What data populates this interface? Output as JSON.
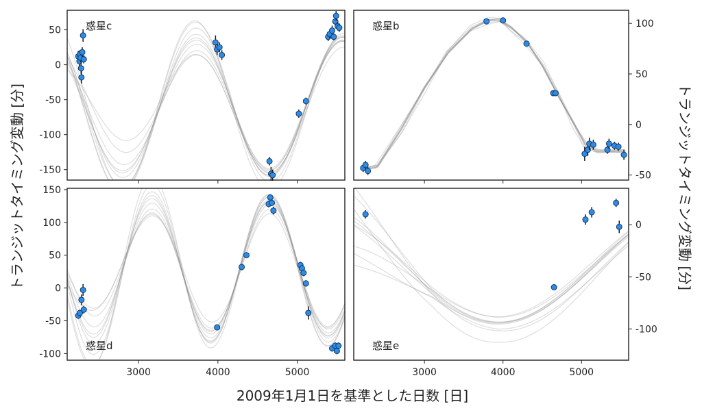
{
  "figure": {
    "xlabel": "2009年1月1日を基準とした日数 [日]",
    "ylabel_left": "トランジットタイミング変動 [分]",
    "ylabel_right": "トランジットタイミング変動 [分]"
  },
  "chart_data": [
    {
      "type": "scatter",
      "panel": "top-left",
      "label": "惑星c",
      "y_axis_side": "left",
      "xlim": [
        2100,
        5600
      ],
      "ylim": [
        -165,
        78
      ],
      "x_ticks": [
        3000,
        4000,
        5000
      ],
      "y_ticks": [
        -150,
        -100,
        -50,
        0,
        50
      ],
      "model": {
        "amplitude": 97,
        "offset": -60,
        "period": 1850,
        "phase_x": 4650,
        "phase_type": "min",
        "spread": 22,
        "extend_min": 2300,
        "n_lines": 10
      },
      "series": [
        {
          "points": [
            [
              2240,
              12,
              8
            ],
            [
              2255,
              5,
              7
            ],
            [
              2260,
              15,
              6
            ],
            [
              2270,
              10,
              6
            ],
            [
              2275,
              -5,
              8
            ],
            [
              2280,
              -18,
              9
            ],
            [
              2290,
              18,
              7
            ],
            [
              2300,
              42,
              9
            ],
            [
              2310,
              8,
              6
            ],
            [
              3970,
              32,
              10
            ],
            [
              3990,
              22,
              8
            ],
            [
              4020,
              25,
              7
            ],
            [
              4050,
              14,
              7
            ],
            [
              4650,
              -138,
              6
            ],
            [
              4670,
              -156,
              10
            ],
            [
              4690,
              -158,
              8
            ],
            [
              5020,
              -70,
              6
            ],
            [
              5110,
              -52,
              5
            ],
            [
              5390,
              40,
              6
            ],
            [
              5410,
              44,
              6
            ],
            [
              5440,
              49,
              7
            ],
            [
              5460,
              40,
              5
            ],
            [
              5480,
              62,
              8
            ],
            [
              5490,
              70,
              7
            ],
            [
              5510,
              55,
              6
            ],
            [
              5530,
              53,
              6
            ]
          ]
        }
      ]
    },
    {
      "type": "scatter",
      "panel": "top-right",
      "label": "惑星b",
      "y_axis_side": "right",
      "xlim": [
        2100,
        5600
      ],
      "ylim": [
        -55,
        113
      ],
      "x_ticks": [
        3000,
        4000,
        5000
      ],
      "y_ticks": [
        -50,
        0,
        50,
        100
      ],
      "model": {
        "type": "piecewise",
        "knots": [
          [
            2200,
            -43
          ],
          [
            2400,
            -40
          ],
          [
            2700,
            -5
          ],
          [
            3000,
            35
          ],
          [
            3300,
            70
          ],
          [
            3600,
            94
          ],
          [
            3800,
            103
          ],
          [
            3950,
            105
          ],
          [
            4100,
            97
          ],
          [
            4300,
            82
          ],
          [
            4500,
            58
          ],
          [
            4700,
            28
          ],
          [
            4900,
            0
          ],
          [
            5050,
            -20
          ],
          [
            5200,
            -25
          ],
          [
            5550,
            -25
          ]
        ],
        "spread": 4,
        "n_lines": 10
      },
      "series": [
        {
          "points": [
            [
              2220,
              -43,
              4
            ],
            [
              2250,
              -40,
              4
            ],
            [
              2280,
              -46,
              4
            ],
            [
              3790,
              102,
              2
            ],
            [
              4000,
              103,
              2
            ],
            [
              4300,
              80,
              2
            ],
            [
              4640,
              31,
              2
            ],
            [
              4670,
              31,
              2
            ],
            [
              5040,
              -29,
              7
            ],
            [
              5080,
              -25,
              6
            ],
            [
              5100,
              -19,
              6
            ],
            [
              5150,
              -20,
              5
            ],
            [
              5330,
              -25,
              4
            ],
            [
              5350,
              -19,
              5
            ],
            [
              5420,
              -21,
              4
            ],
            [
              5470,
              -22,
              4
            ],
            [
              5540,
              -30,
              5
            ]
          ]
        }
      ]
    },
    {
      "type": "scatter",
      "panel": "bottom-left",
      "label": "惑星d",
      "y_axis_side": "left",
      "xlim": [
        2100,
        5600
      ],
      "ylim": [
        -110,
        152
      ],
      "x_ticks": [
        3000,
        4000,
        5000
      ],
      "y_ticks": [
        -100,
        -50,
        0,
        50,
        100,
        150
      ],
      "model": {
        "amplitude": 103,
        "offset": 30,
        "period": 1480,
        "phase_x": 4650,
        "phase_type": "max",
        "spread": 18,
        "extend_min": 2200,
        "n_lines": 10
      },
      "series": [
        {
          "points": [
            [
              2240,
              -42,
              5
            ],
            [
              2260,
              -38,
              5
            ],
            [
              2280,
              -18,
              8
            ],
            [
              2300,
              -3,
              9
            ],
            [
              2310,
              -33,
              6
            ],
            [
              3990,
              -60,
              4
            ],
            [
              4300,
              32,
              5
            ],
            [
              4360,
              50,
              4
            ],
            [
              4640,
              128,
              5
            ],
            [
              4660,
              138,
              5
            ],
            [
              4680,
              130,
              5
            ],
            [
              4700,
              118,
              6
            ],
            [
              5040,
              35,
              5
            ],
            [
              5060,
              30,
              5
            ],
            [
              5080,
              23,
              5
            ],
            [
              5110,
              7,
              5
            ],
            [
              5140,
              -38,
              10
            ],
            [
              5440,
              -92,
              5
            ],
            [
              5480,
              -88,
              5
            ],
            [
              5500,
              -96,
              5
            ],
            [
              5520,
              -88,
              5
            ]
          ]
        }
      ]
    },
    {
      "type": "scatter",
      "panel": "bottom-right",
      "label": "惑星e",
      "y_axis_side": "right",
      "xlim": [
        2100,
        5600
      ],
      "ylim": [
        -130,
        35
      ],
      "x_ticks": [
        3000,
        4000,
        5000
      ],
      "y_ticks": [
        -100,
        -50,
        0
      ],
      "model": {
        "amplitude": 57,
        "offset": -38,
        "period": 5000,
        "phase_x": 3950,
        "phase_type": "min",
        "spread": 30,
        "extend_min": 2200,
        "n_lines": 10
      },
      "series": [
        {
          "points": [
            [
              2250,
              10,
              4
            ],
            [
              4650,
              -60,
              2
            ],
            [
              5050,
              5,
              5
            ],
            [
              5130,
              12,
              5
            ],
            [
              5440,
              21,
              4
            ],
            [
              5480,
              -2,
              6
            ]
          ]
        }
      ]
    }
  ]
}
